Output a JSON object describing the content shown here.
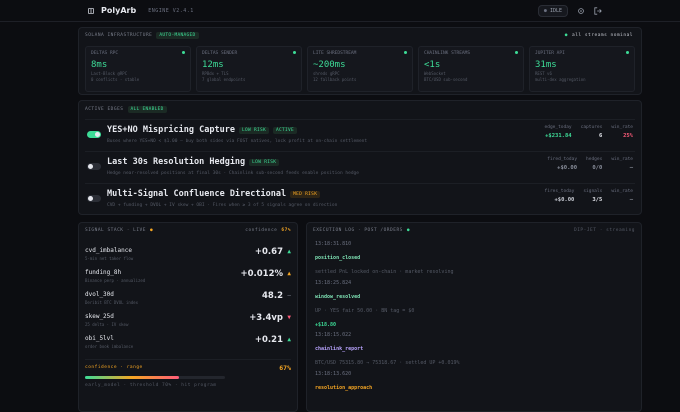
{
  "header": {
    "brand": "PolyArb",
    "version": "ENGINE V2.4.1",
    "status": "IDLE"
  },
  "infra": {
    "title": "SOLANA INFRASTRUCTURE",
    "badge": "AUTO-MANAGED",
    "status": "all streams nominal",
    "cards": [
      {
        "name": "DELTAS RPC",
        "value": "8ms",
        "lines": [
          "Last-Block @RPC",
          "0 conflicts · stable"
        ]
      },
      {
        "name": "DELTAS SENDER",
        "value": "12ms",
        "lines": [
          "RPBdx + TLS",
          "7 global endpoints"
        ]
      },
      {
        "name": "LITE SHREDSTREAM",
        "value": "~200ms",
        "lines": [
          "shreds gRPC",
          "12 fallback points"
        ]
      },
      {
        "name": "CHAINLINK STREAMS",
        "value": "<1s",
        "lines": [
          "WebSocket",
          "BTC/USD sub-second"
        ]
      },
      {
        "name": "JUPITER API",
        "value": "31ms",
        "lines": [
          "REST v6",
          "multi-dex aggregation"
        ]
      }
    ]
  },
  "edges": {
    "title": "ACTIVE EDGES",
    "badge": "ALL ENABLED",
    "items": [
      {
        "name": "YES+NO Mispricing Capture",
        "enabled": true,
        "badges": [
          "LOW RISK",
          "ACTIVE"
        ],
        "description": "Buses where YES+NO < $1.00 — buy both sides via FOST natives, lock profit at on-chain settlement",
        "stats": [
          {
            "label": "edge_today",
            "value": "+$231.84",
            "color": "#3ddc97"
          },
          {
            "label": "captures",
            "value": "6",
            "color": "#e6e8ee"
          },
          {
            "label": "win_rate",
            "value": "25%",
            "color": "#ff5c7a"
          }
        ]
      },
      {
        "name": "Last 30s Resolution Hedging",
        "enabled": false,
        "badges": [
          "LOW RISK"
        ],
        "description": "Hedge near-resolved positions at final 30s · Chainlink sub-second feeds enable position hedge",
        "stats": [
          {
            "label": "fired_today",
            "value": "+$0.00",
            "color": "#8a8f9c"
          },
          {
            "label": "hedges",
            "value": "0/0",
            "color": "#8a8f9c"
          },
          {
            "label": "win_rate",
            "value": "—",
            "color": "#8a8f9c"
          }
        ]
      },
      {
        "name": "Multi-Signal Confluence Directional",
        "enabled": false,
        "badges": [
          "MED RISK"
        ],
        "description": "CVD + funding + DVOL + IV skew + OBI · Fires when ≥ 3 of 5 signals agree on direction",
        "stats": [
          {
            "label": "fires_today",
            "value": "+$0.00",
            "color": "#c9ccd4"
          },
          {
            "label": "signals",
            "value": "3/5",
            "color": "#e6e8ee"
          },
          {
            "label": "win_rate",
            "value": "—",
            "color": "#8a8f9c"
          }
        ]
      }
    ]
  },
  "signals": {
    "title": "SIGNAL STACK · LIVE",
    "confidence_label": "confidence",
    "confidence": {
      "value": 67,
      "label": "67%"
    },
    "items": [
      {
        "name": "cvd_imbalance",
        "sub": "5-min net taker flow",
        "value": "+0.67",
        "trend": "▲",
        "color": "#3ddc97"
      },
      {
        "name": "funding_8h",
        "sub": "Binance perp · annualized",
        "value": "+0.012%",
        "trend": "▲",
        "color": "#f5a623"
      },
      {
        "name": "dvol_30d",
        "sub": "Deribit BTC DVOL index",
        "value": "48.2",
        "trend": "—",
        "color": "#8a8f9c"
      },
      {
        "name": "skew_25d",
        "sub": "25 delta · IV skew",
        "value": "+3.4vp",
        "trend": "▼",
        "color": "#ff5c7a"
      },
      {
        "name": "obi_5lvl",
        "sub": "order book imbalance",
        "value": "+0.21",
        "trend": "▲",
        "color": "#3ddc97"
      }
    ],
    "footer_label": "confidence · range",
    "footer_note": "early_model · threshold 70% · hit program"
  },
  "log": {
    "title": "EXECUTION LOG · POST /ORDERS",
    "status": "DIP-JET · streaming",
    "entries": [
      {
        "time": "13:18:31.810",
        "event": "position_closed",
        "color": "#7fe3b5",
        "detail": "settled PnL locked on-chain · market resolving"
      },
      {
        "time": "13:18:25.824",
        "event": "window_resolved",
        "color": "#7fe3b5",
        "detail": "UP · YES fair 50.00 · BN tag = $0",
        "amount": "+$18.80"
      },
      {
        "time": "13:18:15.022",
        "event": "chainlink_report",
        "color": "#b9a4ff",
        "detail": "BTC/USD 75315.80 → 75318.67 · settled UP +0.019%"
      },
      {
        "time": "13:18:13.620",
        "event": "resolution_approach",
        "color": "#f5a623"
      }
    ]
  }
}
